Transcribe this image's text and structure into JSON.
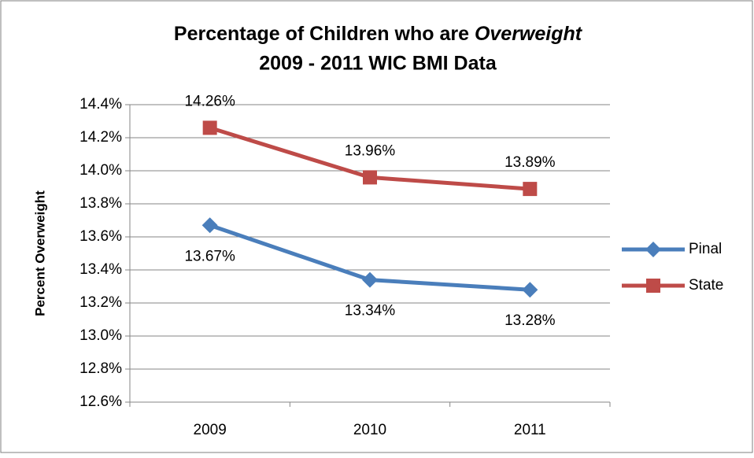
{
  "chart_data": {
    "type": "line",
    "title": [
      "Percentage of Children who are ",
      "Overweight",
      "2009 - 2011 WIC BMI Data"
    ],
    "y_label": "Percent Overweight",
    "categories": [
      "2009",
      "2010",
      "2011"
    ],
    "series": [
      {
        "name": "Pinal",
        "color": "#4a7ebb",
        "marker": "diamond",
        "values": [
          13.67,
          13.34,
          13.28
        ],
        "value_labels": [
          "13.67%",
          "13.34%",
          "13.28%"
        ]
      },
      {
        "name": "State",
        "color": "#be4b48",
        "marker": "square",
        "values": [
          14.26,
          13.96,
          13.89
        ],
        "value_labels": [
          "14.26%",
          "13.96%",
          "13.89%"
        ]
      }
    ],
    "ylim": [
      12.6,
      14.4
    ],
    "yticks": [
      {
        "value": 12.6,
        "label": "12.6%"
      },
      {
        "value": 12.8,
        "label": "12.8%"
      },
      {
        "value": 13.0,
        "label": "13.0%"
      },
      {
        "value": 13.2,
        "label": "13.2%"
      },
      {
        "value": 13.4,
        "label": "13.4%"
      },
      {
        "value": 13.6,
        "label": "13.6%"
      },
      {
        "value": 13.8,
        "label": "13.8%"
      },
      {
        "value": 14.0,
        "label": "14.0%"
      },
      {
        "value": 14.2,
        "label": "14.2%"
      },
      {
        "value": 14.4,
        "label": "14.4%"
      }
    ],
    "grid": true,
    "legend": "right"
  }
}
